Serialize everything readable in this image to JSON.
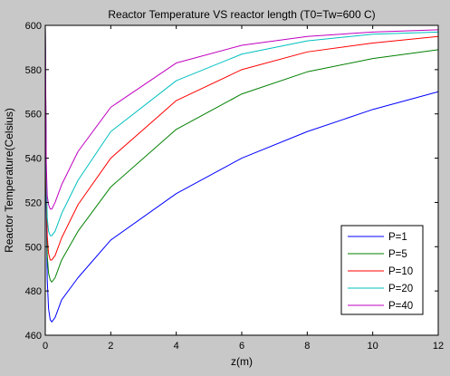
{
  "figure": {
    "background": "#c8c8c8",
    "plot_background": "#ffffff"
  },
  "chart_data": {
    "type": "line",
    "title": "Reactor Temperature  VS reactor length (T0=Tw=600 C)",
    "xlabel": "z(m)",
    "ylabel": "Reactor Temperature(Celsius)",
    "xlim": [
      0,
      12
    ],
    "ylim": [
      460,
      600
    ],
    "xticks": [
      0,
      2,
      4,
      6,
      8,
      10,
      12
    ],
    "yticks": [
      460,
      480,
      500,
      520,
      540,
      560,
      580,
      600
    ],
    "xtick_labels": [
      "0",
      "2",
      "4",
      "6",
      "8",
      "10",
      "12"
    ],
    "ytick_labels": [
      "460",
      "480",
      "500",
      "520",
      "540",
      "560",
      "580",
      "600"
    ],
    "grid": false,
    "legend": {
      "placement": "bottom-right",
      "entries": [
        "P=1",
        "P=5",
        "P=10",
        "P=20",
        "P=40"
      ]
    },
    "series": [
      {
        "name": "P=1",
        "color": "#0000ff",
        "x": [
          0,
          0.03,
          0.06,
          0.1,
          0.15,
          0.2,
          0.3,
          0.5,
          1,
          2,
          4,
          6,
          8,
          10,
          12
        ],
        "y": [
          600,
          520,
          485,
          472,
          467,
          466,
          468,
          476,
          486,
          503,
          524,
          540,
          552,
          562,
          570
        ]
      },
      {
        "name": "P=5",
        "color": "#008000",
        "x": [
          0,
          0.03,
          0.06,
          0.1,
          0.15,
          0.2,
          0.3,
          0.5,
          1,
          2,
          4,
          6,
          8,
          10,
          12
        ],
        "y": [
          600,
          528,
          496,
          488,
          485,
          484,
          486,
          494,
          507,
          527,
          553,
          569,
          579,
          585,
          589
        ]
      },
      {
        "name": "P=10",
        "color": "#ff0000",
        "x": [
          0,
          0.03,
          0.06,
          0.1,
          0.15,
          0.2,
          0.3,
          0.5,
          1,
          2,
          4,
          6,
          8,
          10,
          12
        ],
        "y": [
          600,
          530,
          505,
          497,
          494,
          494,
          496,
          504,
          519,
          540,
          566,
          580,
          588,
          592,
          595
        ]
      },
      {
        "name": "P=20",
        "color": "#00bfbf",
        "x": [
          0,
          0.03,
          0.06,
          0.1,
          0.15,
          0.2,
          0.3,
          0.5,
          1,
          2,
          4,
          6,
          8,
          10,
          12
        ],
        "y": [
          600,
          534,
          513,
          507,
          505,
          505,
          507,
          515,
          530,
          552,
          575,
          587,
          593,
          596,
          597
        ]
      },
      {
        "name": "P=40",
        "color": "#bf00bf",
        "x": [
          0,
          0.03,
          0.06,
          0.1,
          0.15,
          0.2,
          0.3,
          0.5,
          1,
          2,
          4,
          6,
          8,
          10,
          12
        ],
        "y": [
          600,
          538,
          523,
          519,
          517,
          517,
          520,
          528,
          543,
          563,
          583,
          591,
          595,
          597,
          598
        ]
      }
    ]
  }
}
